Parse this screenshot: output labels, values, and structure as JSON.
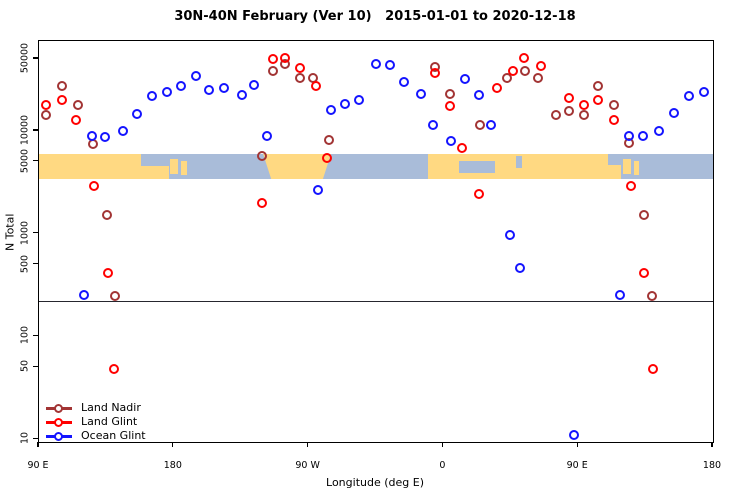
{
  "title": "30N-40N February (Ver 10)   2015-01-01 to 2020-12-18",
  "legend": {
    "items": [
      {
        "label": "Land Nadir",
        "color": "#A23434"
      },
      {
        "label": "Land Glint",
        "color": "#FF0000"
      },
      {
        "label": "Ocean Glint",
        "color": "#1414FF"
      }
    ]
  },
  "chart_data": {
    "type": "scatter",
    "title": "30N-40N February (Ver 10)   2015-01-01 to 2020-12-18",
    "xlabel": "Longitude (deg E)",
    "ylabel": "N Total",
    "y_scale": "log",
    "xlim": [
      90,
      540
    ],
    "ylim": [
      9.4,
      75000
    ],
    "grid": "off",
    "legend_position": "bottom-left",
    "x_ticks": [
      {
        "value": 90,
        "label": "90 E"
      },
      {
        "value": 180,
        "label": "180"
      },
      {
        "value": 270,
        "label": "90 W"
      },
      {
        "value": 360,
        "label": "0"
      },
      {
        "value": 450,
        "label": "90 E"
      },
      {
        "value": 540,
        "label": "180"
      }
    ],
    "y_ticks": [
      {
        "value": 50000,
        "label": "50000"
      },
      {
        "value": 10000,
        "label": "10000"
      },
      {
        "value": 5000,
        "label": "5000"
      },
      {
        "value": 1000,
        "label": "1000"
      },
      {
        "value": 500,
        "label": "500"
      },
      {
        "value": 100,
        "label": "100"
      },
      {
        "value": 50,
        "label": "50"
      },
      {
        "value": 10,
        "label": "10"
      }
    ],
    "reference_line_y": 220,
    "map_band": {
      "value_top": 6000,
      "value_bottom": 3400,
      "ocean_color": "#A9BCD9",
      "land_color": "#FFD982",
      "land_segments": [
        {
          "range": [
            90,
            176.8
          ]
        },
        {
          "range": [
            177.5,
            183
          ],
          "top": 0.2,
          "height": 0.6
        },
        {
          "range": [
            184.5,
            189
          ],
          "top": 0.3,
          "height": 0.55
        },
        {
          "range": [
            239.6,
            285
          ],
          "taper": 0.12
        },
        {
          "range": [
            349.5,
            478.6
          ]
        },
        {
          "range": [
            480,
            485
          ],
          "top": 0.2,
          "height": 0.6
        },
        {
          "range": [
            487,
            490.5
          ],
          "top": 0.3,
          "height": 0.55
        }
      ],
      "water_patches": [
        {
          "range": [
            158,
            176.8
          ],
          "top": 0,
          "height": 0.5
        },
        {
          "range": [
            370.5,
            394.5
          ],
          "top": 0.28,
          "height": 0.5
        },
        {
          "range": [
            408.5,
            412.5
          ],
          "top": 0.08,
          "height": 0.5
        },
        {
          "range": [
            470,
            478.6
          ],
          "top": 0,
          "height": 0.45
        }
      ]
    },
    "series": [
      {
        "id": "land-nadir",
        "name": "Land Nadir",
        "color": "#A23434",
        "points": [
          [
            94.7,
            14300
          ],
          [
            105.4,
            27100
          ],
          [
            116,
            17800
          ],
          [
            126.1,
            7500
          ],
          [
            135.4,
            1510
          ],
          [
            140.7,
            250
          ],
          [
            238.9,
            5700
          ],
          [
            246.2,
            38700
          ],
          [
            254.3,
            45200
          ],
          [
            264.3,
            33100
          ],
          [
            273,
            32400
          ],
          [
            283.6,
            8200
          ],
          [
            354.4,
            42300
          ],
          [
            364.4,
            22700
          ],
          [
            384.4,
            11400
          ],
          [
            402.5,
            33100
          ],
          [
            414.5,
            38700
          ],
          [
            423.2,
            32400
          ],
          [
            435.2,
            14300
          ],
          [
            443.9,
            15600
          ],
          [
            453.9,
            14300
          ],
          [
            463.3,
            27100
          ],
          [
            473.9,
            17800
          ],
          [
            484,
            7600
          ],
          [
            494,
            1510
          ],
          [
            499.3,
            250
          ]
        ]
      },
      {
        "id": "land-glint",
        "name": "Land Glint",
        "color": "#FF0000",
        "points": [
          [
            94.7,
            17800
          ],
          [
            105.4,
            19900
          ],
          [
            114.7,
            12700
          ],
          [
            126.7,
            2880
          ],
          [
            136.1,
            410
          ],
          [
            140.1,
            48
          ],
          [
            238.9,
            1970
          ],
          [
            246.2,
            50500
          ],
          [
            254.3,
            51600
          ],
          [
            264.3,
            41400
          ],
          [
            275,
            27100
          ],
          [
            282.3,
            5500
          ],
          [
            354.4,
            37000
          ],
          [
            364.4,
            17400
          ],
          [
            372.4,
            6800
          ],
          [
            383.8,
            2410
          ],
          [
            395.8,
            25900
          ],
          [
            406.5,
            38700
          ],
          [
            413.9,
            51600
          ],
          [
            425.2,
            43300
          ],
          [
            443.9,
            20800
          ],
          [
            453.9,
            17800
          ],
          [
            463.3,
            19900
          ],
          [
            473.9,
            12700
          ],
          [
            485.3,
            2880
          ],
          [
            494,
            410
          ],
          [
            500,
            48
          ]
        ]
      },
      {
        "id": "ocean-glint",
        "name": "Ocean Glint",
        "color": "#1414FF",
        "points": [
          [
            120,
            256
          ],
          [
            125.4,
            8900
          ],
          [
            134.1,
            8700
          ],
          [
            146.1,
            10000
          ],
          [
            155.4,
            14600
          ],
          [
            165.4,
            21700
          ],
          [
            175.5,
            23800
          ],
          [
            184.8,
            27100
          ],
          [
            194.8,
            33900
          ],
          [
            203.5,
            24800
          ],
          [
            213.5,
            25900
          ],
          [
            225.5,
            22200
          ],
          [
            233.6,
            27700
          ],
          [
            242.2,
            8900
          ],
          [
            276.3,
            2690
          ],
          [
            285,
            15900
          ],
          [
            294.3,
            18200
          ],
          [
            303.7,
            19900
          ],
          [
            315,
            45200
          ],
          [
            324.4,
            44200
          ],
          [
            333.7,
            29600
          ],
          [
            345.1,
            22700
          ],
          [
            353.1,
            11400
          ],
          [
            365.1,
            8000
          ],
          [
            374.4,
            31700
          ],
          [
            383.8,
            22200
          ],
          [
            391.8,
            11400
          ],
          [
            404.5,
            970
          ],
          [
            411.2,
            465
          ],
          [
            447.2,
            11
          ],
          [
            477.9,
            256
          ],
          [
            484,
            8900
          ],
          [
            493.3,
            8900
          ],
          [
            504,
            10000
          ],
          [
            514,
            14900
          ],
          [
            524,
            21700
          ],
          [
            534,
            23800
          ]
        ]
      }
    ]
  }
}
